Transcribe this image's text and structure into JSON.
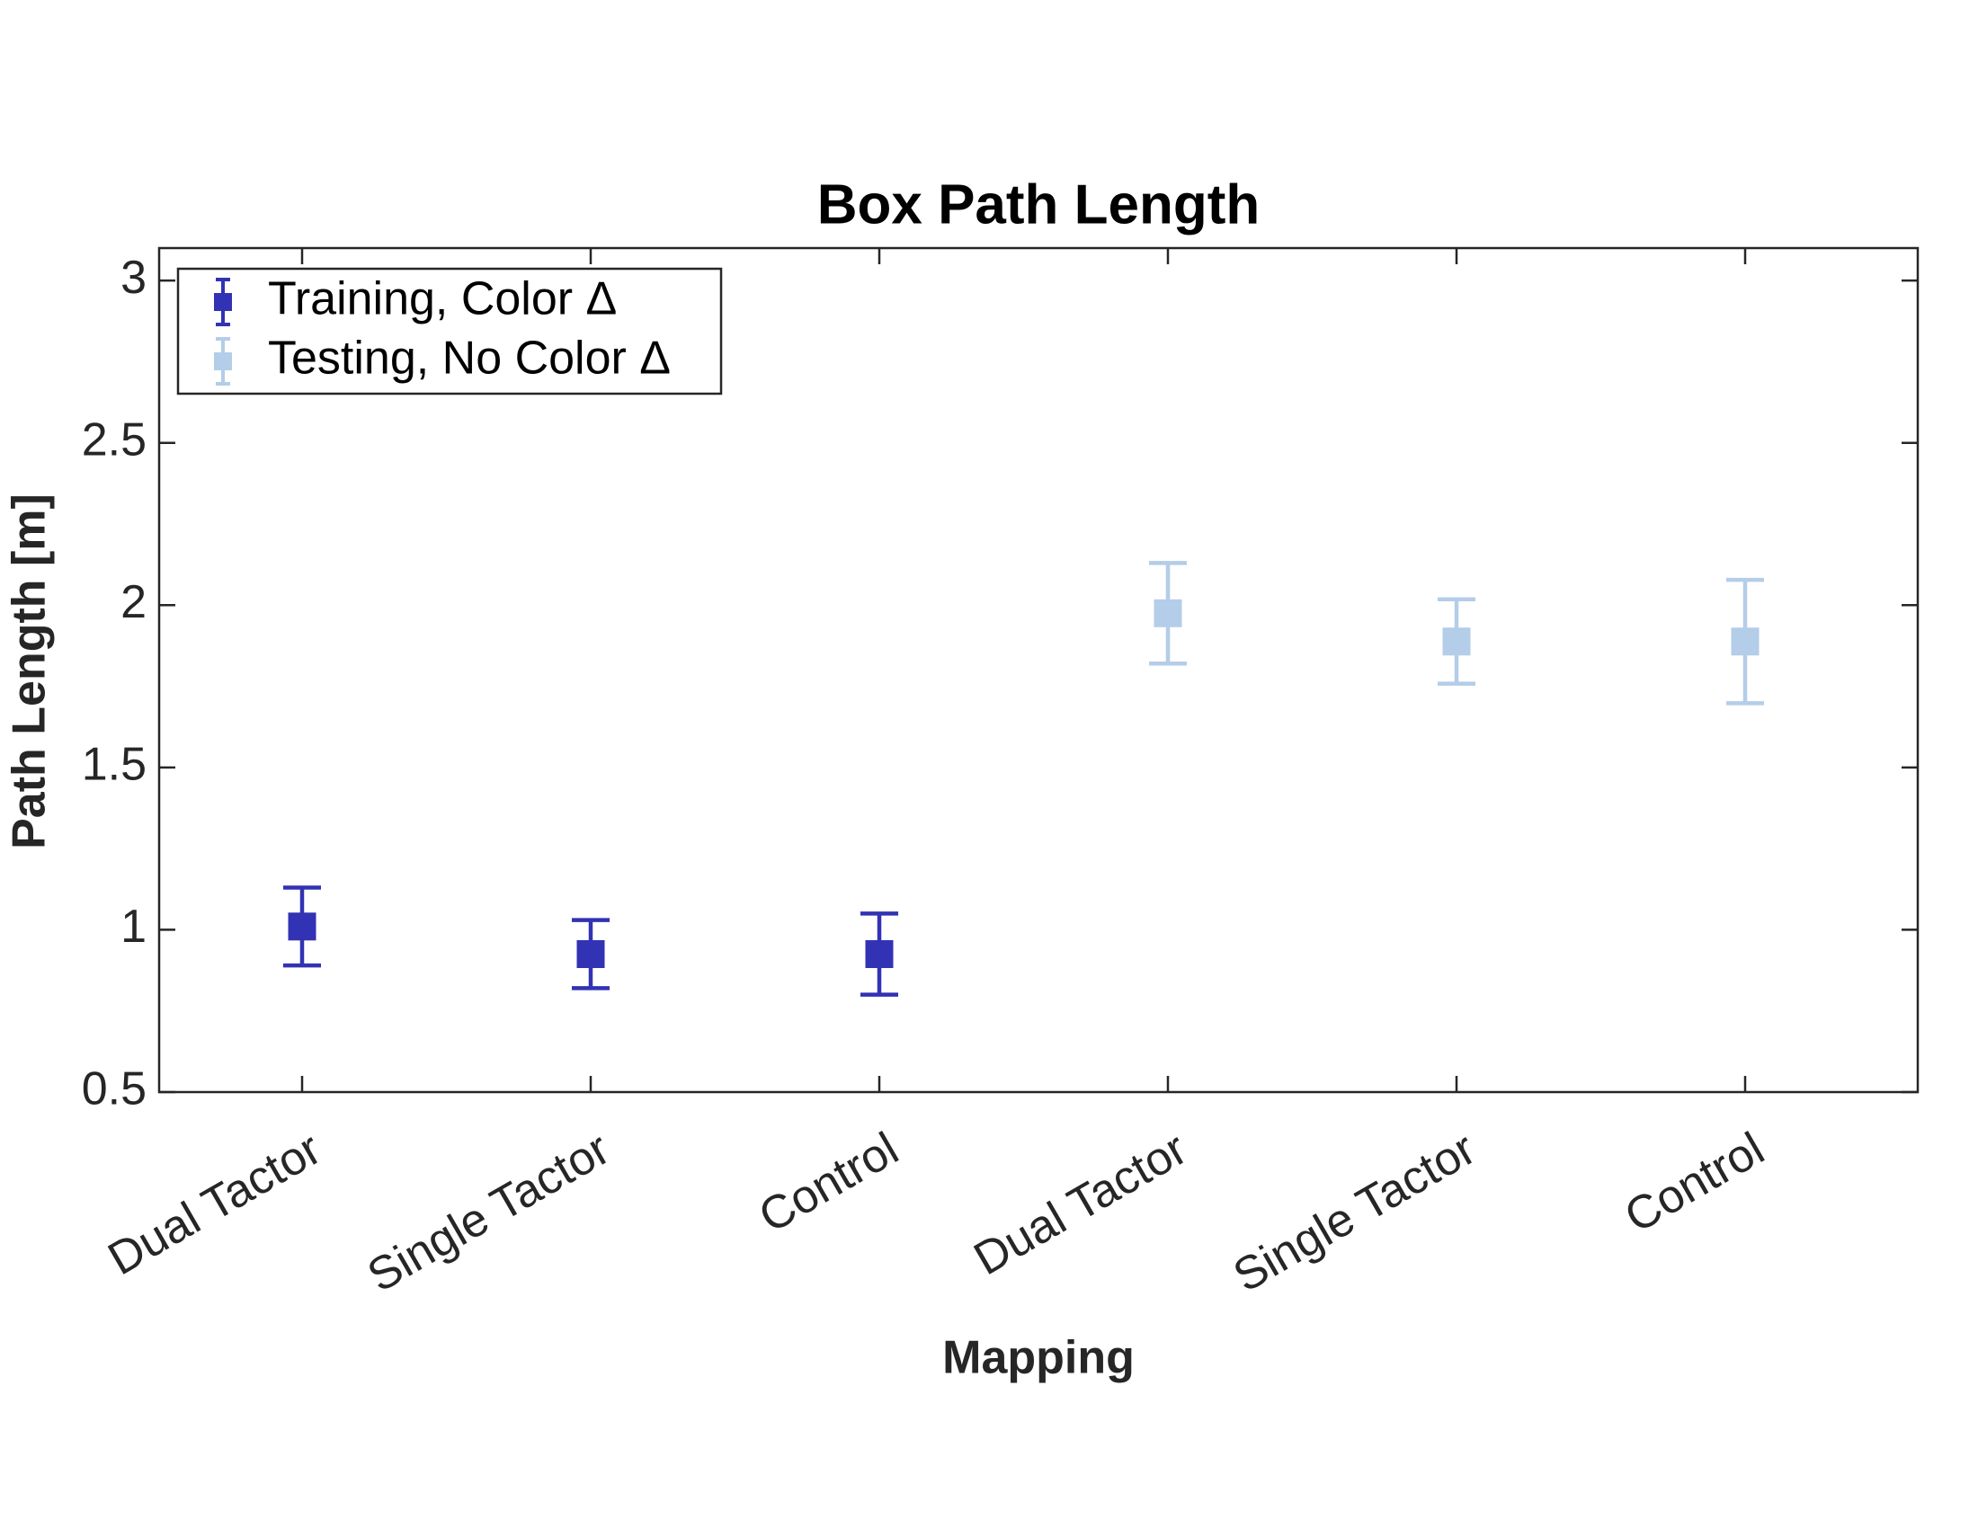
{
  "chart_data": {
    "type": "errorbar",
    "title": "Box Path Length",
    "xlabel": "Mapping",
    "ylabel": "Path Length [m]",
    "categories": [
      "Dual Tactor",
      "Single Tactor",
      "Control",
      "Dual Tactor",
      "Single Tactor",
      "Control"
    ],
    "series": [
      {
        "name": "Training, Color Δ",
        "color": "#3232b4",
        "values": [
          1.01,
          0.925,
          0.925,
          null,
          null,
          null
        ],
        "errors": [
          0.12,
          0.105,
          0.125,
          null,
          null,
          null
        ]
      },
      {
        "name": "Testing, No Color Δ",
        "color": "#b4cde8",
        "values": [
          null,
          null,
          null,
          1.975,
          1.888,
          1.888
        ],
        "errors": [
          null,
          null,
          null,
          0.155,
          0.13,
          0.19
        ]
      }
    ],
    "ylim": [
      0.5,
      3.1
    ],
    "yticks": [
      0.5,
      1,
      1.5,
      2,
      2.5,
      3
    ],
    "legend": "upper left"
  }
}
